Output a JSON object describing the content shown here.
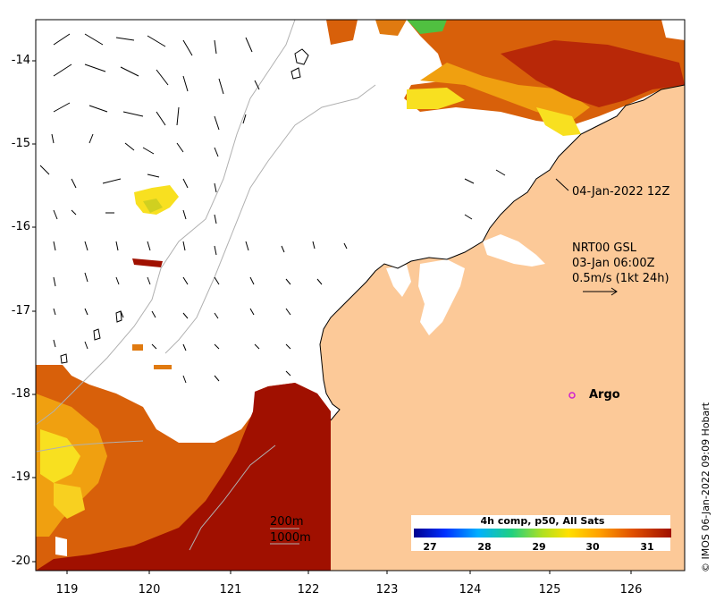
{
  "map": {
    "y_ticks": [
      "-14",
      "-15",
      "-16",
      "-17",
      "-18",
      "-19",
      "-20"
    ],
    "x_ticks": [
      "119",
      "120",
      "121",
      "122",
      "123",
      "124",
      "125",
      "126"
    ],
    "timestamp": "04-Jan-2022 12Z",
    "current_source": "NRT00 GSL",
    "current_time": "03-Jan 06:00Z",
    "scale_label": "0.5m/s (1kt 24h)",
    "argo_label": "Argo",
    "isobath_200": "200m",
    "isobath_1000": "1000m",
    "credit": "© IMOS 06-Jan-2022 09:09 Hobart",
    "colors": {
      "land": "#fcc998",
      "sst_hot": "#a01000",
      "sst_warm": "#d8600a",
      "sst_mid": "#f0a010",
      "sst_cool": "#f8e020",
      "argo": "#d020d0"
    }
  },
  "colorbar": {
    "title": "4h comp, p50, All Sats",
    "ticks": [
      "27",
      "28",
      "29",
      "30",
      "31"
    ],
    "colors": [
      "#00008f",
      "#0040ff",
      "#00c0ff",
      "#30d060",
      "#c0e020",
      "#ffd000",
      "#ff8000",
      "#e04000",
      "#a01000"
    ]
  }
}
